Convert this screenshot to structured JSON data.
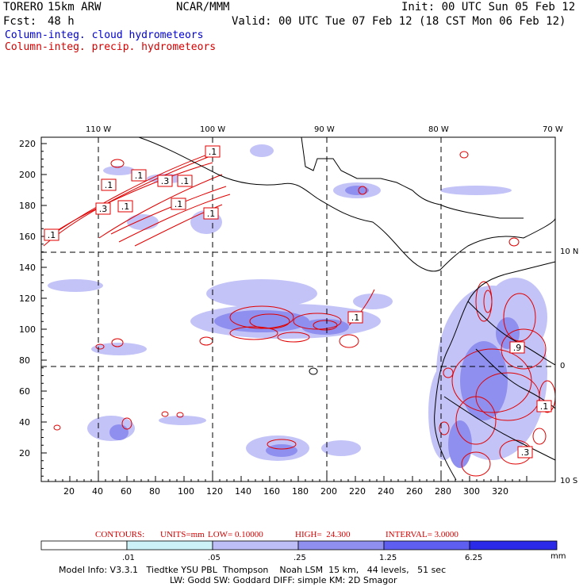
{
  "header": {
    "model": "TORERO",
    "resolution": "15km ARW",
    "center": "NCAR/MMM",
    "init": "Init: 00 UTC Sun 05 Feb 12",
    "fcst_label": "Fcst:",
    "fcst_hours": "48 h",
    "valid": "Valid: 00 UTC Tue 07 Feb 12 (18 CST Mon 06 Feb 12)"
  },
  "legend": {
    "cloud": "Column-integ. cloud hydrometeors",
    "precip": "Column-integ. precip. hydrometeors"
  },
  "axes": {
    "top_lon": [
      "110 W",
      "100 W",
      "90 W",
      "80 W",
      "70 W"
    ],
    "right_lat": [
      "10 N",
      "0",
      "10 S"
    ],
    "y_ticks": [
      "220",
      "200",
      "180",
      "160",
      "140",
      "120",
      "100",
      "80",
      "60",
      "40",
      "20"
    ],
    "x_ticks": [
      "20",
      "40",
      "60",
      "80",
      "100",
      "120",
      "140",
      "160",
      "180",
      "200",
      "220",
      "240",
      "260",
      "280",
      "300",
      "320"
    ]
  },
  "contour_labels": [
    ".1",
    ".1",
    ".3",
    ".1",
    ".1",
    ".1",
    ".1",
    ".3",
    ".1",
    ".1",
    ".1",
    ".9",
    ".1",
    ".3"
  ],
  "contours_info": {
    "label": "CONTOURS:",
    "units": "UNITS=mm",
    "low": "LOW= 0.10000",
    "high": "HIGH=  24.300",
    "interval": "INTERVAL= 3.0000"
  },
  "colorbar": {
    "ticks": [
      ".01",
      ".05",
      ".25",
      "1.25",
      "6.25"
    ],
    "unit": "mm",
    "colors": [
      "#ffffff",
      "#ccf2f8",
      "#bdbdf7",
      "#8f8ff0",
      "#5e5ef0",
      "#2a2ae8"
    ]
  },
  "model_info": {
    "line1": "Model Info: V3.3.1   Tiedtke YSU PBL  Thompson    Noah LSM  15 km,   44 levels,   51 sec",
    "line2": "LW: Godd SW: Goddard DIFF: simple KM: 2D Smagor"
  }
}
